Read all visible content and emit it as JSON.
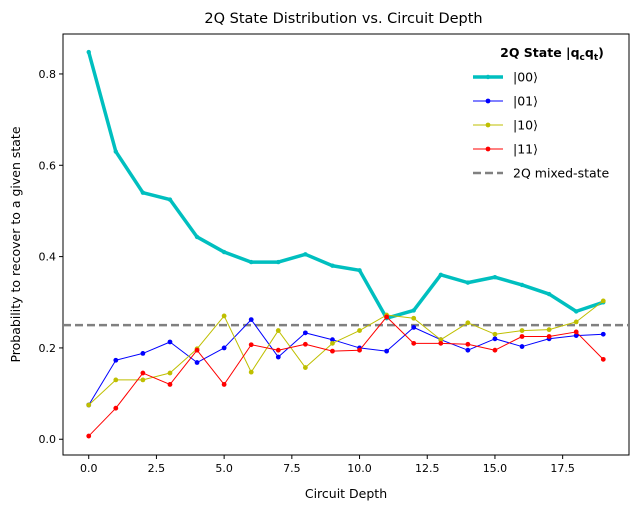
{
  "chart_data": {
    "type": "line",
    "title": "2Q State Distribution vs. Circuit Depth",
    "xlabel": "Circuit Depth",
    "ylabel": "Probability to recover to a given state",
    "xlim": [
      -0.95,
      19.95
    ],
    "ylim": [
      -0.0345,
      0.8875
    ],
    "xticks": [
      0.0,
      2.5,
      5.0,
      7.5,
      10.0,
      12.5,
      15.0,
      17.5
    ],
    "xtick_labels": [
      "0.0",
      "2.5",
      "5.0",
      "7.5",
      "10.0",
      "12.5",
      "15.0",
      "17.5"
    ],
    "yticks": [
      0.0,
      0.2,
      0.4,
      0.6,
      0.8
    ],
    "ytick_labels": [
      "0.0",
      "0.2",
      "0.4",
      "0.6",
      "0.8"
    ],
    "grid": false,
    "legend": {
      "placement": "top-right",
      "title_main": "2Q State |q",
      "title_sub1": "c",
      "title_mid": "q",
      "title_sub2": "t",
      "title_end": ")"
    },
    "x": [
      0,
      1,
      2,
      3,
      4,
      5,
      6,
      7,
      8,
      9,
      10,
      11,
      12,
      13,
      14,
      15,
      16,
      17,
      18,
      19
    ],
    "series": [
      {
        "name": "|00⟩",
        "color": "#00bfbf",
        "values": [
          0.848,
          0.63,
          0.54,
          0.525,
          0.443,
          0.41,
          0.388,
          0.388,
          0.405,
          0.38,
          0.37,
          0.265,
          0.282,
          0.36,
          0.343,
          0.355,
          0.338,
          0.318,
          0.28,
          0.3
        ]
      },
      {
        "name": "|01⟩",
        "color": "#0000ff",
        "values": [
          0.075,
          0.173,
          0.188,
          0.213,
          0.168,
          0.2,
          0.262,
          0.18,
          0.233,
          0.218,
          0.2,
          0.193,
          0.245,
          0.218,
          0.195,
          0.22,
          0.203,
          0.22,
          0.227,
          0.23
        ]
      },
      {
        "name": "|10⟩",
        "color": "#bfbf00",
        "values": [
          0.075,
          0.13,
          0.13,
          0.145,
          0.198,
          0.27,
          0.147,
          0.238,
          0.157,
          0.21,
          0.238,
          0.272,
          0.265,
          0.218,
          0.255,
          0.23,
          0.238,
          0.24,
          0.257,
          0.303
        ]
      },
      {
        "name": "|11⟩",
        "color": "#ff0000",
        "values": [
          0.007,
          0.068,
          0.145,
          0.12,
          0.195,
          0.12,
          0.207,
          0.195,
          0.208,
          0.193,
          0.195,
          0.268,
          0.21,
          0.21,
          0.208,
          0.195,
          0.225,
          0.225,
          0.235,
          0.175
        ]
      }
    ],
    "reference_line": {
      "name": "2Q mixed-state",
      "value": 0.25,
      "color": "#808080"
    }
  }
}
